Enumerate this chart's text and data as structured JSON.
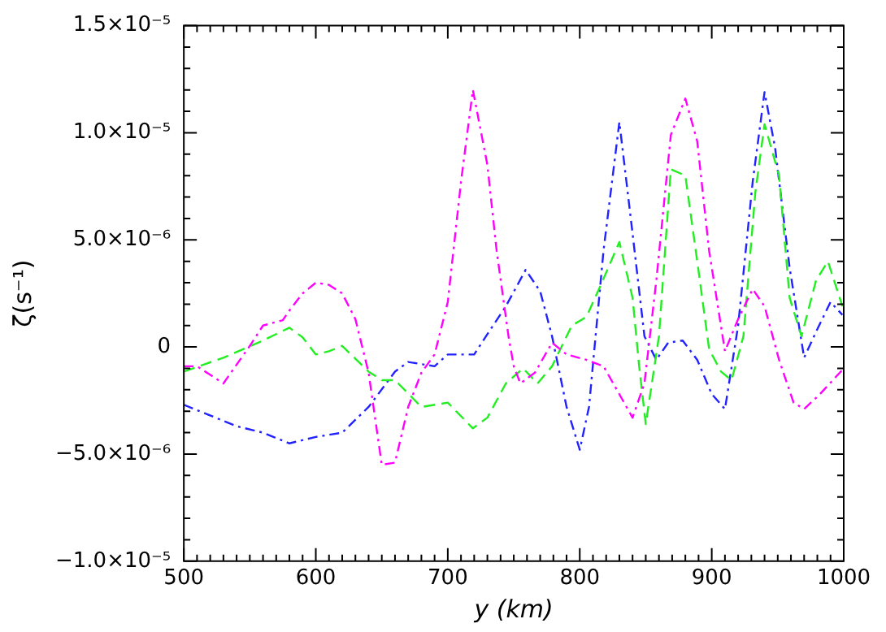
{
  "chart_data": {
    "type": "line",
    "xlabel": "y (km)",
    "ylabel": "ζ(s⁻¹)",
    "xlim": [
      500,
      1000
    ],
    "xticks": [
      500,
      {
        "value": 510,
        "label": null
      },
      {
        "value": 520,
        "label": null
      },
      {
        "value": 530,
        "label": null
      },
      {
        "value": 540,
        "label": null
      },
      {
        "value": 550,
        "label": null
      },
      {
        "value": 560,
        "label": null
      },
      {
        "value": 570,
        "label": null
      },
      {
        "value": 580,
        "label": null
      },
      {
        "value": 590,
        "label": null
      },
      600,
      {
        "value": 610,
        "label": null
      },
      {
        "value": 620,
        "label": null
      },
      {
        "value": 630,
        "label": null
      },
      {
        "value": 640,
        "label": null
      },
      {
        "value": 650,
        "label": null
      },
      {
        "value": 660,
        "label": null
      },
      {
        "value": 670,
        "label": null
      },
      {
        "value": 680,
        "label": null
      },
      {
        "value": 690,
        "label": null
      },
      700,
      {
        "value": 710,
        "label": null
      },
      {
        "value": 720,
        "label": null
      },
      {
        "value": 730,
        "label": null
      },
      {
        "value": 740,
        "label": null
      },
      {
        "value": 750,
        "label": null
      },
      {
        "value": 760,
        "label": null
      },
      {
        "value": 770,
        "label": null
      },
      {
        "value": 780,
        "label": null
      },
      {
        "value": 790,
        "label": null
      },
      800,
      {
        "value": 810,
        "label": null
      },
      {
        "value": 820,
        "label": null
      },
      {
        "value": 830,
        "label": null
      },
      {
        "value": 840,
        "label": null
      },
      {
        "value": 850,
        "label": null
      },
      {
        "value": 860,
        "label": null
      },
      {
        "value": 870,
        "label": null
      },
      {
        "value": 880,
        "label": null
      },
      {
        "value": 890,
        "label": null
      },
      900,
      {
        "value": 910,
        "label": null
      },
      {
        "value": 920,
        "label": null
      },
      {
        "value": 930,
        "label": null
      },
      {
        "value": 940,
        "label": null
      },
      {
        "value": 950,
        "label": null
      },
      {
        "value": 960,
        "label": null
      },
      {
        "value": 970,
        "label": null
      },
      {
        "value": 980,
        "label": null
      },
      {
        "value": 990,
        "label": null
      },
      1000
    ],
    "ylim": [
      -1e-05,
      1.5e-05
    ],
    "yticks": [
      {
        "value": -1e-05,
        "label": "−1.0×10⁻⁵"
      },
      {
        "value": -9e-06,
        "label": null
      },
      {
        "value": -8e-06,
        "label": null
      },
      {
        "value": -7e-06,
        "label": null
      },
      {
        "value": -6e-06,
        "label": null
      },
      {
        "value": -5e-06,
        "label": "−5.0×10⁻⁶"
      },
      {
        "value": -4e-06,
        "label": null
      },
      {
        "value": -3e-06,
        "label": null
      },
      {
        "value": -2e-06,
        "label": null
      },
      {
        "value": -1e-06,
        "label": null
      },
      0,
      {
        "value": 1e-06,
        "label": null
      },
      {
        "value": 2e-06,
        "label": null
      },
      {
        "value": 3e-06,
        "label": null
      },
      {
        "value": 4e-06,
        "label": null
      },
      {
        "value": 5e-06,
        "label": "5.0×10⁻⁶"
      },
      {
        "value": 6e-06,
        "label": null
      },
      {
        "value": 7e-06,
        "label": null
      },
      {
        "value": 8e-06,
        "label": null
      },
      {
        "value": 9e-06,
        "label": null
      },
      {
        "value": 1e-05,
        "label": "1.0×10⁻⁵"
      },
      {
        "value": 1.1e-05,
        "label": null
      },
      {
        "value": 1.2e-05,
        "label": null
      },
      {
        "value": 1.3e-05,
        "label": null
      },
      {
        "value": 1.4e-05,
        "label": null
      },
      {
        "value": 1.5e-05,
        "label": "1.5×10⁻⁵"
      }
    ],
    "grid": false,
    "legend": false,
    "marker": "none",
    "series": [
      {
        "color": "#ff00ff",
        "line_style": "dotted",
        "x": [
          500,
          510,
          530,
          550,
          560,
          575,
          580,
          590,
          600,
          610,
          620,
          630,
          640,
          650,
          660,
          670,
          680,
          690,
          700,
          710,
          719,
          730,
          737,
          746,
          750,
          755,
          766,
          779,
          790,
          805,
          818,
          840,
          849,
          858,
          869,
          880,
          889,
          898,
          910,
          920,
          931,
          940,
          951,
          962,
          970,
          982,
          1000
        ],
        "values": [
          -9e-07,
          -9e-07,
          -1.7e-06,
          5e-08,
          1e-06,
          1.25e-06,
          1.7e-06,
          2.5e-06,
          3e-06,
          2.9e-06,
          2.5e-06,
          1.3e-06,
          -1.2e-06,
          -5.5e-06,
          -5.4e-06,
          -2.8e-06,
          -1.2e-06,
          -3.5e-07,
          2.1e-06,
          7.7e-06,
          1.2e-05,
          8.5e-06,
          4.5e-06,
          5e-07,
          -9e-07,
          -1.7e-06,
          -1.2e-06,
          2e-07,
          -3.5e-07,
          -6e-07,
          -9e-07,
          -3.3e-06,
          -1.7e-06,
          3.1e-06,
          9.9e-06,
          1.16e-05,
          9.6e-06,
          4.5e-06,
          -2e-07,
          1.3e-06,
          2.7e-06,
          1.9e-06,
          -6e-07,
          -2.6e-06,
          -2.9e-06,
          -2.2e-06,
          -1e-06
        ]
      },
      {
        "color": "#22ee22",
        "line_style": "dashed",
        "x": [
          500,
          530,
          560,
          580,
          590,
          600,
          610,
          620,
          640,
          650,
          660,
          680,
          700,
          719,
          730,
          744,
          757,
          768,
          779,
          794,
          805,
          816,
          830,
          840,
          845,
          850,
          860,
          869,
          880,
          889,
          898,
          907,
          915,
          924,
          933,
          940,
          951,
          959,
          968,
          979,
          988,
          999
        ],
        "values": [
          -1.15e-06,
          -5e-07,
          3e-07,
          9e-07,
          4.5e-07,
          -3.5e-07,
          -2e-07,
          5e-08,
          -1.15e-06,
          -1.55e-06,
          -1.55e-06,
          -2.8e-06,
          -2.6e-06,
          -3.8e-06,
          -3.3e-06,
          -1.7e-06,
          -1e-06,
          -1.7e-06,
          -9e-07,
          1e-06,
          1.4e-06,
          2.9e-06,
          4.9e-06,
          2.3e-06,
          -9e-07,
          -3.6e-06,
          5e-07,
          8.3e-06,
          8e-06,
          4e-06,
          -1e-07,
          -1.15e-06,
          -1.55e-06,
          5e-07,
          7.2e-06,
          1.04e-05,
          8e-06,
          2.3e-06,
          5e-07,
          3.1e-06,
          4e-06,
          1.9e-06
        ]
      },
      {
        "color": "#2222ff",
        "line_style": "dotted",
        "x": [
          500,
          540,
          560,
          580,
          600,
          620,
          640,
          660,
          670,
          690,
          700,
          720,
          730,
          744,
          759,
          770,
          779,
          790,
          800,
          807,
          818,
          830,
          840,
          849,
          858,
          867,
          878,
          889,
          900,
          910,
          920,
          931,
          940,
          948,
          959,
          970,
          979,
          990,
          999
        ],
        "values": [
          -2.7e-06,
          -3.7e-06,
          -4e-06,
          -4.5e-06,
          -4.2e-06,
          -4e-06,
          -2.8e-06,
          -1.15e-06,
          -7e-07,
          -9e-07,
          -3.5e-07,
          -3.5e-07,
          6e-07,
          1.9e-06,
          3.6e-06,
          2.6e-06,
          5e-07,
          -2.8e-06,
          -4.8e-06,
          -2.8e-06,
          4.5e-06,
          1.05e-05,
          5.3e-06,
          5e-07,
          -6e-07,
          2e-07,
          3e-07,
          -6e-07,
          -2.2e-06,
          -2.9e-06,
          1e-06,
          7.7e-06,
          1.19e-05,
          9.3e-06,
          3.7e-06,
          -5e-07,
          7e-07,
          2.1e-06,
          1.5e-06
        ]
      }
    ]
  }
}
